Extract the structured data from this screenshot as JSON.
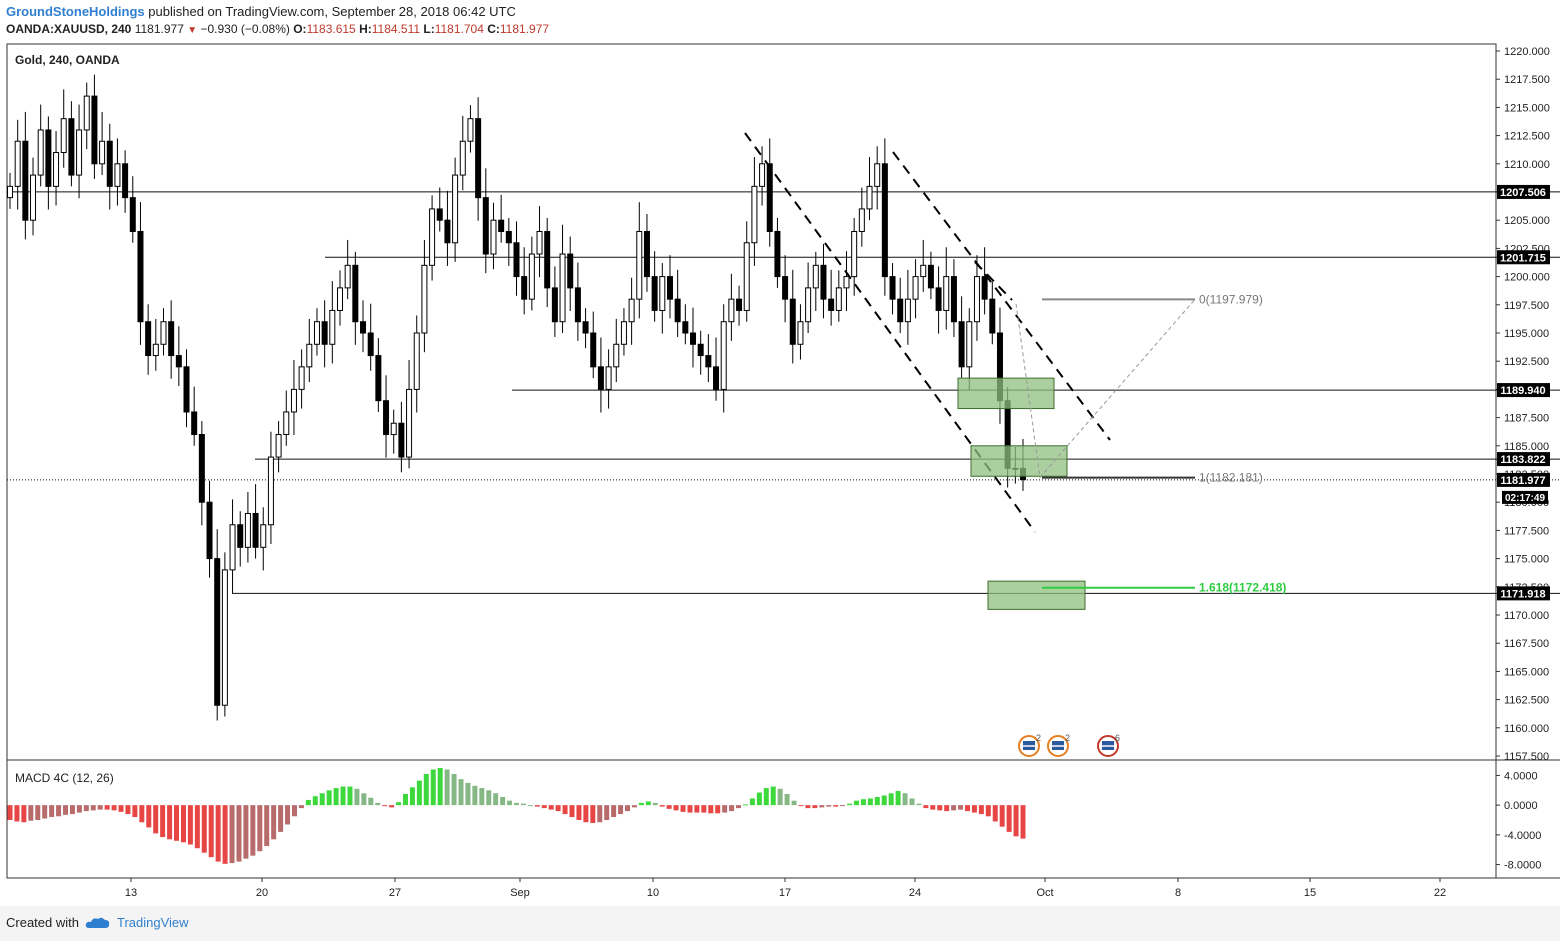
{
  "header": {
    "author": "GroundStoneHoldings",
    "published_text": "published on TradingView.com, September 28, 2018 06:42 UTC",
    "symbol": "OANDA:XAUUSD, 240",
    "last": "1181.977",
    "change": "−0.930 (−0.08%)",
    "open_label": "O:",
    "open": "1183.615",
    "high_label": "H:",
    "high": "1184.511",
    "low_label": "L:",
    "low": "1181.704",
    "close_label": "C:",
    "close": "1181.977"
  },
  "pane_labels": {
    "main": "Gold, 240, OANDA",
    "macd": "MACD 4C (12, 26)"
  },
  "footer": {
    "created_with": "Created with",
    "brand": "TradingView"
  },
  "colors": {
    "bull_candle": "#ffffff",
    "bear_candle": "#000000",
    "zone_fill": "#8fbf7f",
    "fib_green": "#2ecc40",
    "macd_green": "#3cd83c",
    "macd_red": "#e84545",
    "brand_blue": "#2f7fd1"
  },
  "chart_data": {
    "type": "candlestick",
    "title": "Gold, 240, OANDA",
    "ylim": [
      1157.5,
      1220.0
    ],
    "y_ticks": [
      "1157.500",
      "1160.000",
      "1162.500",
      "1165.000",
      "1167.500",
      "1170.000",
      "1172.500",
      "1175.000",
      "1177.500",
      "1180.000",
      "1182.500",
      "1185.000",
      "1187.500",
      "1190.000",
      "1192.500",
      "1195.000",
      "1197.500",
      "1200.000",
      "1202.500",
      "1205.000",
      "1207.500",
      "1210.000",
      "1212.500",
      "1215.000",
      "1217.500",
      "1220.000"
    ],
    "x_ticks": [
      "13",
      "20",
      "27",
      "Sep",
      "10",
      "17",
      "24",
      "Oct",
      "8",
      "15",
      "22"
    ],
    "price_levels": [
      {
        "label": "1207.506",
        "value": 1207.506
      },
      {
        "label": "1201.715",
        "value": 1201.715
      },
      {
        "label": "1189.940",
        "value": 1189.94
      },
      {
        "label": "1183.822",
        "value": 1183.822
      },
      {
        "label": "1181.977",
        "value": 1181.977,
        "style": "dotted",
        "current": true
      },
      {
        "label": "1171.918",
        "value": 1171.918
      }
    ],
    "countdown": "02:17:49",
    "fib_extension": [
      {
        "label": "0(1197.979)",
        "value": 1197.979
      },
      {
        "label": "1(1182.181)",
        "value": 1182.181
      },
      {
        "label": "1.618(1172.418)",
        "value": 1172.418
      }
    ],
    "zones": [
      {
        "top": 1191.0,
        "bottom": 1188.3
      },
      {
        "top": 1185.0,
        "bottom": 1182.3
      },
      {
        "top": 1173.0,
        "bottom": 1170.5
      }
    ],
    "event_icons": [
      {
        "label": "2"
      },
      {
        "label": "2"
      },
      {
        "label": "6"
      }
    ],
    "candles_ohlc_path": [
      1208,
      1212,
      1205,
      1209,
      1213,
      1208,
      1211,
      1214,
      1209,
      1213,
      1216,
      1210,
      1212,
      1208,
      1210,
      1207,
      1204,
      1196,
      1193,
      1194,
      1196,
      1193,
      1192,
      1188,
      1186,
      1180,
      1175,
      1162,
      1174,
      1178,
      1176,
      1179,
      1176,
      1178,
      1184,
      1186,
      1188,
      1190,
      1192,
      1194,
      1196,
      1194,
      1197,
      1199,
      1201,
      1196,
      1195,
      1193,
      1189,
      1186,
      1187,
      1184,
      1190,
      1195,
      1201,
      1206,
      1205,
      1203,
      1209,
      1212,
      1214,
      1207,
      1202,
      1205,
      1204,
      1203,
      1200,
      1198,
      1202,
      1204,
      1199,
      1196,
      1202,
      1199,
      1196,
      1195,
      1192,
      1190,
      1192,
      1194,
      1196,
      1198,
      1204,
      1200,
      1197,
      1200,
      1198,
      1196,
      1195,
      1194,
      1193,
      1192,
      1190,
      1196,
      1198,
      1197,
      1203,
      1208,
      1210,
      1204,
      1200,
      1198,
      1194,
      1196,
      1199,
      1201,
      1198,
      1197,
      1199,
      1200,
      1204,
      1206,
      1208,
      1210,
      1200,
      1198,
      1196,
      1198,
      1200,
      1201,
      1199,
      1197,
      1200,
      1196,
      1192,
      1196,
      1200,
      1198,
      1195,
      1189,
      1183,
      1183,
      1182
    ],
    "macd": {
      "ylim": [
        -9.0,
        5.0
      ],
      "y_ticks": [
        "4.0000",
        "0.0000",
        "-4.0000",
        "-8.0000"
      ],
      "hist": [
        -2.0,
        -2.2,
        -2.3,
        -2.1,
        -2.0,
        -1.8,
        -1.6,
        -1.5,
        -1.3,
        -1.2,
        -1.0,
        -0.8,
        -0.7,
        -0.6,
        -0.6,
        -0.7,
        -0.9,
        -1.2,
        -1.6,
        -2.3,
        -3.0,
        -3.8,
        -4.3,
        -4.6,
        -4.8,
        -5.0,
        -5.3,
        -5.8,
        -6.4,
        -7.0,
        -7.6,
        -7.9,
        -7.8,
        -7.6,
        -7.2,
        -6.8,
        -6.2,
        -5.5,
        -4.6,
        -3.6,
        -2.6,
        -1.5,
        -0.4,
        0.7,
        1.2,
        1.6,
        2.0,
        2.3,
        2.5,
        2.5,
        2.2,
        1.6,
        1.0,
        0.3,
        -0.1,
        -0.3,
        0.4,
        1.5,
        2.4,
        3.3,
        4.2,
        4.8,
        5.0,
        4.8,
        4.2,
        3.5,
        3.0,
        2.6,
        2.3,
        2.0,
        1.6,
        1.1,
        0.6,
        0.3,
        0.2,
        0.0,
        -0.2,
        -0.4,
        -0.6,
        -0.8,
        -1.2,
        -1.6,
        -2.0,
        -2.3,
        -2.4,
        -2.3,
        -2.0,
        -1.6,
        -1.2,
        -0.8,
        -0.3,
        0.3,
        0.5,
        0.3,
        -0.2,
        -0.5,
        -0.7,
        -0.9,
        -1.0,
        -1.0,
        -1.0,
        -1.1,
        -1.1,
        -1.0,
        -0.8,
        -0.4,
        0.1,
        0.9,
        1.7,
        2.3,
        2.5,
        2.2,
        1.5,
        0.6,
        -0.1,
        -0.4,
        -0.4,
        -0.3,
        -0.2,
        -0.2,
        -0.1,
        0.2,
        0.6,
        0.8,
        0.9,
        1.1,
        1.3,
        1.6,
        1.9,
        1.6,
        0.9,
        0.2,
        -0.4,
        -0.6,
        -0.7,
        -0.8,
        -0.7,
        -0.6,
        -0.8,
        -1.0,
        -1.2,
        -1.5,
        -2.2,
        -2.9,
        -3.6,
        -4.2,
        -4.5
      ]
    }
  }
}
